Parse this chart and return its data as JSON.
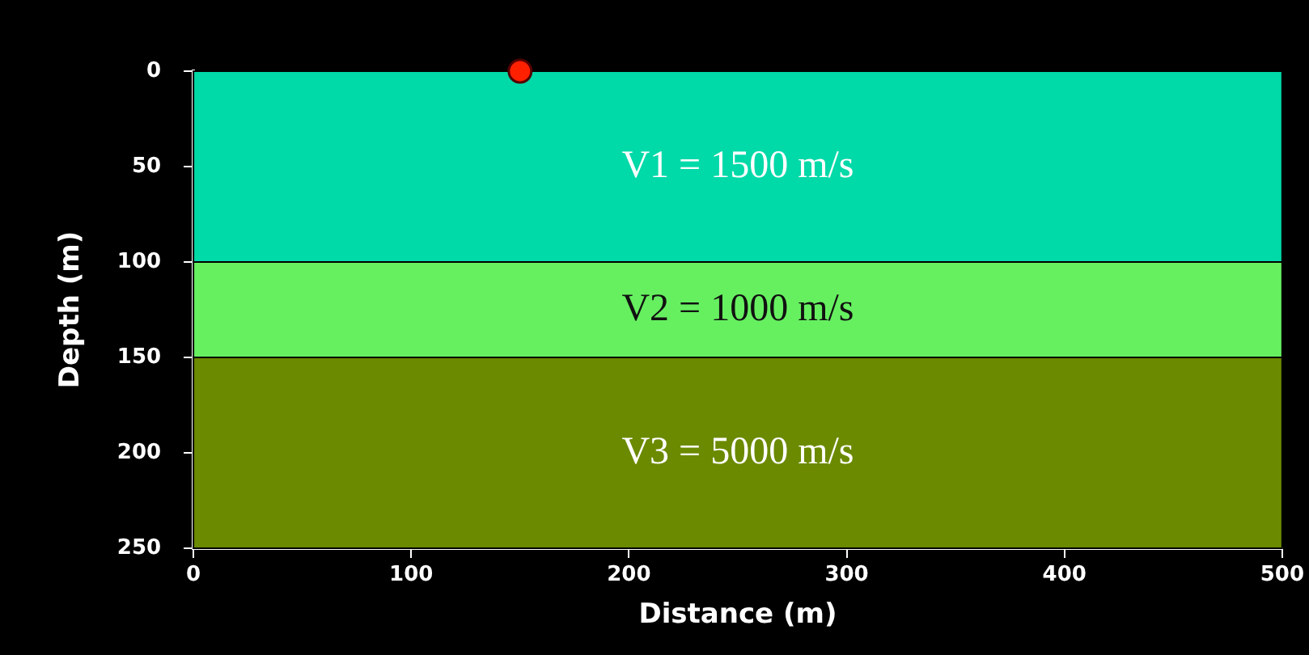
{
  "chart_data": {
    "type": "scatter",
    "xlabel": "Distance (m)",
    "ylabel": "Depth (m)",
    "x": [
      150
    ],
    "values": [
      0
    ],
    "color": "#ff2000",
    "marker": "circle",
    "xlim": [
      0,
      500
    ],
    "ylim": [
      250,
      0
    ],
    "xticks": [
      0,
      100,
      200,
      300,
      400,
      500
    ],
    "yticks": [
      0,
      50,
      100,
      150,
      200,
      250
    ],
    "bands": [
      {
        "axis": "y",
        "from": 0,
        "to": 100,
        "label": "V1 = 1500 m/s",
        "color": "#00d9a8"
      },
      {
        "axis": "y",
        "from": 100,
        "to": 150,
        "label": "V2 = 1000 m/s",
        "color": "#66f060"
      },
      {
        "axis": "y",
        "from": 150,
        "to": 250,
        "label": "V3 = 5000 m/s",
        "color": "#6b8a00"
      }
    ],
    "grid": false
  }
}
